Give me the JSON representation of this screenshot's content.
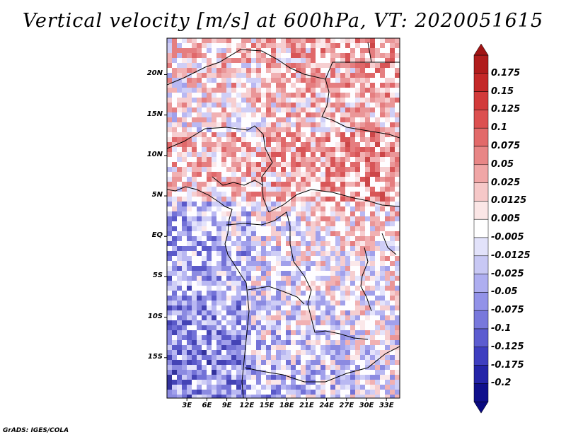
{
  "title": "Vertical velocity [m/s] at 600hPa, VT: 2020051615",
  "credit": "GrADS: IGES/COLA",
  "map": {
    "lat_labels": [
      "20N",
      "15N",
      "10N",
      "5N",
      "EQ",
      "5S",
      "10S",
      "15S"
    ],
    "lon_labels": [
      "3E",
      "6E",
      "9E",
      "12E",
      "15E",
      "18E",
      "21E",
      "24E",
      "27E",
      "30E",
      "33E"
    ],
    "lon_range_deg": [
      0,
      35
    ],
    "lat_range_deg": [
      -20,
      24.5
    ]
  },
  "colorbar": {
    "levels": [
      "0.175",
      "0.15",
      "0.125",
      "0.1",
      "0.075",
      "0.05",
      "0.025",
      "0.0125",
      "0.005",
      "-0.005",
      "-0.0125",
      "-0.025",
      "-0.05",
      "-0.075",
      "-0.1",
      "-0.125",
      "-0.175",
      "-0.2"
    ],
    "colors": [
      "#b01c1c",
      "#c42828",
      "#d23a3a",
      "#dc5050",
      "#e26a6a",
      "#e88686",
      "#f0a6a6",
      "#f6c8c8",
      "#fbe6e6",
      "#ffffff",
      "#e2e2fa",
      "#c8c8f4",
      "#aeaef0",
      "#9292e8",
      "#7878dc",
      "#5c5cd0",
      "#3e3ec0",
      "#2424a8",
      "#10108c"
    ],
    "top_cap_color": "#a01414",
    "bottom_cap_color": "#0a0a80"
  }
}
